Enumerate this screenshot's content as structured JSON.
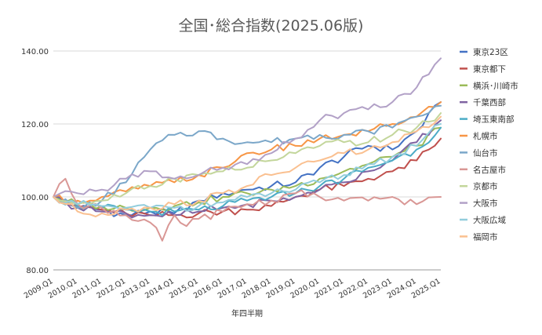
{
  "chart_data": {
    "type": "line",
    "title": "全国･総合指数(2025.06版)",
    "xlabel": "年四半期",
    "ylabel": "",
    "ylim": [
      80,
      140
    ],
    "yticks": [
      "80.00",
      "100.00",
      "120.00",
      "140.00"
    ],
    "xticks": [
      "2009.Q1",
      "2010.Q1",
      "2011.Q1",
      "2012.Q1",
      "2013.Q1",
      "2014.Q1",
      "2015.Q1",
      "2016.Q1",
      "2017.Q1",
      "2018.Q1",
      "2019.Q1",
      "2020.Q1",
      "2021.Q1",
      "2022.Q1",
      "2023.Q1",
      "2024.Q1",
      "2025.Q1"
    ],
    "grid": true,
    "legend_position": "right",
    "n_points": 65,
    "series": [
      {
        "name": "東京23区",
        "color": "#4472c4",
        "anchors": [
          [
            0,
            100
          ],
          [
            4,
            97
          ],
          [
            8,
            96.5
          ],
          [
            12,
            95
          ],
          [
            16,
            96
          ],
          [
            20,
            95.5
          ],
          [
            24,
            99
          ],
          [
            28,
            101
          ],
          [
            32,
            102
          ],
          [
            36,
            103
          ],
          [
            40,
            104
          ],
          [
            44,
            108
          ],
          [
            48,
            111
          ],
          [
            52,
            114
          ],
          [
            56,
            113
          ],
          [
            60,
            118
          ],
          [
            64,
            126
          ]
        ]
      },
      {
        "name": "東京都下",
        "color": "#c0504d",
        "anchors": [
          [
            0,
            100
          ],
          [
            4,
            97.5
          ],
          [
            8,
            96.5
          ],
          [
            12,
            95.5
          ],
          [
            16,
            95
          ],
          [
            20,
            95
          ],
          [
            24,
            95.5
          ],
          [
            28,
            96
          ],
          [
            32,
            96.5
          ],
          [
            36,
            97.5
          ],
          [
            40,
            100
          ],
          [
            44,
            102
          ],
          [
            48,
            103
          ],
          [
            52,
            105
          ],
          [
            56,
            107
          ],
          [
            60,
            110
          ],
          [
            64,
            116
          ]
        ]
      },
      {
        "name": "横浜･川崎市",
        "color": "#9bbb59",
        "anchors": [
          [
            0,
            100
          ],
          [
            4,
            98
          ],
          [
            8,
            97.5
          ],
          [
            12,
            97
          ],
          [
            16,
            97
          ],
          [
            20,
            97.5
          ],
          [
            24,
            98.5
          ],
          [
            28,
            100
          ],
          [
            32,
            101
          ],
          [
            36,
            102
          ],
          [
            40,
            103
          ],
          [
            44,
            105
          ],
          [
            48,
            107
          ],
          [
            52,
            109
          ],
          [
            56,
            111
          ],
          [
            60,
            114
          ],
          [
            64,
            119
          ]
        ]
      },
      {
        "name": "千葉西部",
        "color": "#8064a2",
        "anchors": [
          [
            0,
            100
          ],
          [
            4,
            97
          ],
          [
            8,
            96
          ],
          [
            12,
            95.5
          ],
          [
            16,
            95
          ],
          [
            20,
            95
          ],
          [
            24,
            96
          ],
          [
            28,
            97
          ],
          [
            32,
            98
          ],
          [
            36,
            99
          ],
          [
            40,
            100
          ],
          [
            44,
            102
          ],
          [
            48,
            104
          ],
          [
            52,
            107
          ],
          [
            56,
            110
          ],
          [
            60,
            115
          ],
          [
            64,
            121
          ]
        ]
      },
      {
        "name": "埼玉東南部",
        "color": "#4bacc6",
        "anchors": [
          [
            0,
            100
          ],
          [
            4,
            97.5
          ],
          [
            8,
            97
          ],
          [
            12,
            96.5
          ],
          [
            16,
            96
          ],
          [
            20,
            96
          ],
          [
            24,
            96.5
          ],
          [
            28,
            97.5
          ],
          [
            32,
            99
          ],
          [
            36,
            100
          ],
          [
            40,
            101
          ],
          [
            44,
            103
          ],
          [
            48,
            105
          ],
          [
            52,
            108
          ],
          [
            56,
            110
          ],
          [
            60,
            113
          ],
          [
            64,
            119
          ]
        ]
      },
      {
        "name": "札幌市",
        "color": "#f79646",
        "anchors": [
          [
            0,
            100
          ],
          [
            4,
            99
          ],
          [
            8,
            100
          ],
          [
            12,
            101.5
          ],
          [
            16,
            103
          ],
          [
            20,
            104
          ],
          [
            24,
            106
          ],
          [
            28,
            108
          ],
          [
            32,
            112
          ],
          [
            36,
            113
          ],
          [
            40,
            114
          ],
          [
            44,
            116
          ],
          [
            48,
            117
          ],
          [
            52,
            118
          ],
          [
            56,
            120
          ],
          [
            60,
            122
          ],
          [
            64,
            126
          ]
        ]
      },
      {
        "name": "仙台市",
        "color": "#7ba7c9",
        "anchors": [
          [
            0,
            100
          ],
          [
            4,
            97
          ],
          [
            8,
            99
          ],
          [
            12,
            104
          ],
          [
            16,
            113
          ],
          [
            20,
            117
          ],
          [
            24,
            118
          ],
          [
            28,
            116
          ],
          [
            32,
            115
          ],
          [
            36,
            115
          ],
          [
            40,
            116
          ],
          [
            44,
            117
          ],
          [
            48,
            117
          ],
          [
            52,
            118
          ],
          [
            56,
            119
          ],
          [
            60,
            122
          ],
          [
            64,
            125
          ]
        ]
      },
      {
        "name": "名古屋市",
        "color": "#d99795",
        "anchors": [
          [
            0,
            100
          ],
          [
            2,
            105
          ],
          [
            4,
            98
          ],
          [
            8,
            97
          ],
          [
            12,
            95
          ],
          [
            16,
            93
          ],
          [
            18,
            88
          ],
          [
            20,
            95
          ],
          [
            22,
            92
          ],
          [
            24,
            94
          ],
          [
            28,
            96
          ],
          [
            32,
            98
          ],
          [
            36,
            99
          ],
          [
            40,
            101
          ],
          [
            44,
            100
          ],
          [
            48,
            99
          ],
          [
            52,
            99
          ],
          [
            56,
            100
          ],
          [
            60,
            98
          ],
          [
            64,
            100
          ]
        ]
      },
      {
        "name": "京都市",
        "color": "#c3d69b",
        "anchors": [
          [
            0,
            100
          ],
          [
            4,
            98
          ],
          [
            8,
            99
          ],
          [
            12,
            101
          ],
          [
            16,
            103
          ],
          [
            20,
            105
          ],
          [
            24,
            106
          ],
          [
            28,
            107
          ],
          [
            32,
            108
          ],
          [
            36,
            110
          ],
          [
            40,
            112
          ],
          [
            44,
            114
          ],
          [
            48,
            115
          ],
          [
            52,
            115
          ],
          [
            56,
            117
          ],
          [
            60,
            119
          ],
          [
            64,
            123
          ]
        ]
      },
      {
        "name": "大阪市",
        "color": "#b2a1c7",
        "anchors": [
          [
            0,
            100
          ],
          [
            4,
            101
          ],
          [
            8,
            102
          ],
          [
            12,
            105
          ],
          [
            16,
            107
          ],
          [
            20,
            105
          ],
          [
            24,
            106
          ],
          [
            28,
            108
          ],
          [
            32,
            109
          ],
          [
            36,
            112
          ],
          [
            40,
            116
          ],
          [
            44,
            121
          ],
          [
            48,
            123
          ],
          [
            52,
            124
          ],
          [
            56,
            126
          ],
          [
            60,
            130
          ],
          [
            64,
            138
          ]
        ]
      },
      {
        "name": "大阪広域",
        "color": "#92cddc",
        "anchors": [
          [
            0,
            100
          ],
          [
            4,
            98
          ],
          [
            8,
            97.5
          ],
          [
            12,
            97
          ],
          [
            16,
            97
          ],
          [
            20,
            97
          ],
          [
            24,
            97.5
          ],
          [
            28,
            98.5
          ],
          [
            32,
            100
          ],
          [
            36,
            101
          ],
          [
            40,
            102
          ],
          [
            44,
            104
          ],
          [
            48,
            106
          ],
          [
            52,
            109
          ],
          [
            56,
            111
          ],
          [
            60,
            114
          ],
          [
            64,
            120
          ]
        ]
      },
      {
        "name": "福岡市",
        "color": "#fac090",
        "anchors": [
          [
            0,
            100
          ],
          [
            4,
            96
          ],
          [
            8,
            95.5
          ],
          [
            12,
            96.5
          ],
          [
            16,
            97
          ],
          [
            20,
            98
          ],
          [
            24,
            99
          ],
          [
            28,
            101
          ],
          [
            32,
            103
          ],
          [
            36,
            106
          ],
          [
            40,
            108
          ],
          [
            44,
            110
          ],
          [
            48,
            112
          ],
          [
            52,
            113
          ],
          [
            56,
            115
          ],
          [
            60,
            118
          ],
          [
            64,
            122
          ]
        ]
      }
    ]
  }
}
